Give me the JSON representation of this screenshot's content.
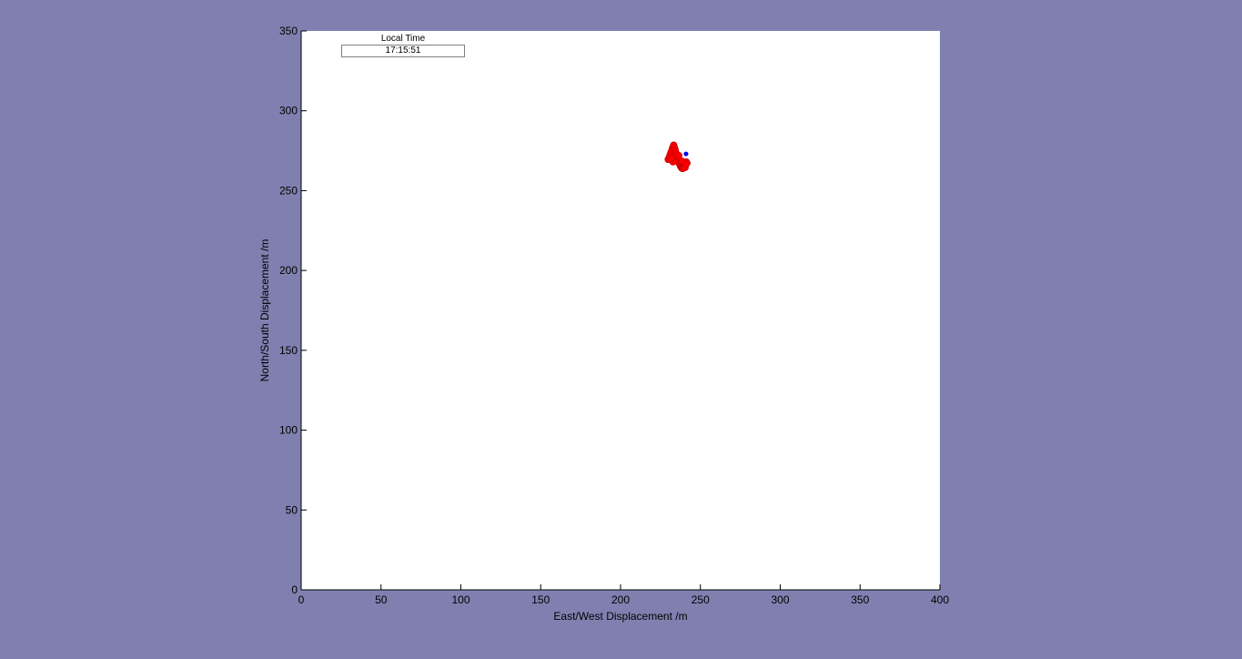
{
  "time_widget": {
    "title": "Local Time",
    "value": "17:15:51"
  },
  "colors": {
    "background": "#8080B0",
    "plot_area": "#FFFFFF",
    "track_points": "#FF0000",
    "track_edge": "#C00000",
    "current_position": "#0000FF"
  },
  "chart_data": {
    "type": "scatter",
    "xlabel": "East/West Displacement /m",
    "ylabel": "North/South Displacement /m",
    "xlim": [
      0,
      400
    ],
    "ylim": [
      0,
      350
    ],
    "xticks": [
      0,
      50,
      100,
      150,
      200,
      250,
      300,
      350,
      400
    ],
    "yticks": [
      0,
      50,
      100,
      150,
      200,
      250,
      300,
      350
    ],
    "grid": false,
    "series": [
      {
        "marker": "filled-circle",
        "color": "#FF0000",
        "x": [
          229.8,
          230.5,
          231.0,
          231.5,
          232.0,
          232.5,
          233.0,
          233.3,
          233.8,
          234.2,
          234.6,
          235.0,
          235.3,
          235.7,
          236.0,
          236.4,
          236.8,
          237.2,
          237.6,
          238.0,
          238.4,
          238.8,
          239.2,
          239.6,
          240.0,
          240.4,
          240.8,
          241.2,
          241.6,
          233.5,
          234.0,
          232.8,
          231.8,
          236.5,
          238.5,
          240.5,
          241.0
        ],
        "y": [
          269.5,
          271.0,
          272.5,
          273.8,
          275.0,
          276.5,
          277.8,
          278.5,
          277.0,
          275.5,
          274.0,
          272.5,
          271.0,
          270.0,
          269.0,
          268.0,
          267.0,
          266.0,
          265.2,
          264.5,
          264.0,
          263.8,
          264.2,
          265.0,
          266.0,
          266.8,
          267.5,
          268.0,
          267.2,
          270.5,
          268.5,
          268.0,
          270.0,
          272.0,
          268.5,
          264.5,
          266.5
        ]
      },
      {
        "marker": "dot",
        "color": "#0000FF",
        "x": [
          241.0
        ],
        "y": [
          273.0
        ]
      }
    ]
  }
}
